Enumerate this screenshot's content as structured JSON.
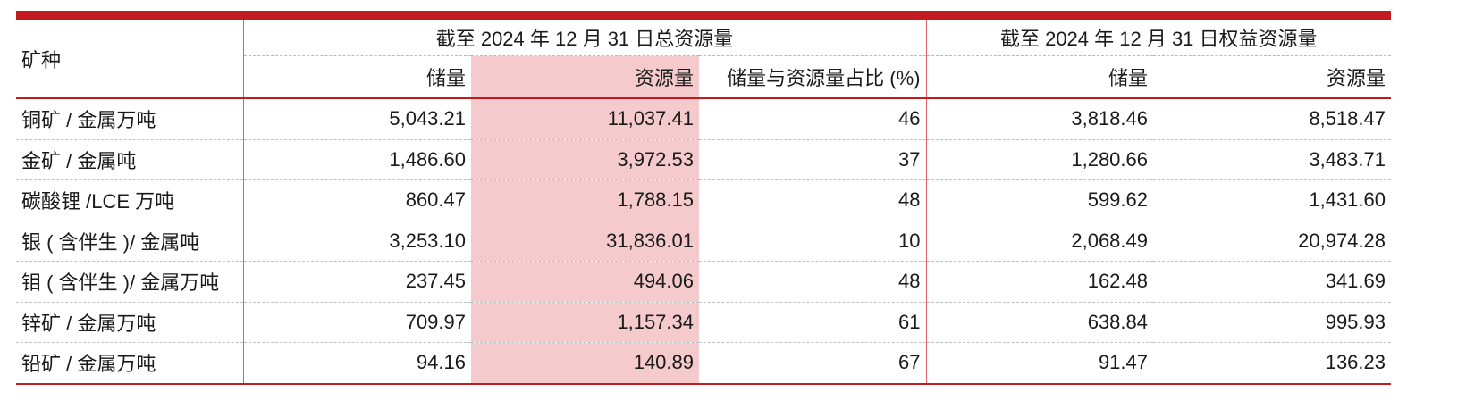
{
  "table": {
    "mineral_header": "矿种",
    "group_total": "截至 2024 年 12 月 31 日总资源量",
    "group_equity": "截至 2024 年 12 月 31 日权益资源量",
    "columns": [
      "储量",
      "资源量",
      "储量与资源量占比 (%)",
      "储量",
      "资源量"
    ],
    "highlight_color": "#f4cacd",
    "accent_color": "#c41a20",
    "rows": [
      {
        "name": "铜矿 / 金属万吨",
        "values": [
          "5,043.21",
          "11,037.41",
          "46",
          "3,818.46",
          "8,518.47"
        ]
      },
      {
        "name": "金矿 / 金属吨",
        "values": [
          "1,486.60",
          "3,972.53",
          "37",
          "1,280.66",
          "3,483.71"
        ]
      },
      {
        "name": "碳酸锂 /LCE 万吨",
        "values": [
          "860.47",
          "1,788.15",
          "48",
          "599.62",
          "1,431.60"
        ]
      },
      {
        "name": "银 ( 含伴生 )/ 金属吨",
        "values": [
          "3,253.10",
          "31,836.01",
          "10",
          "2,068.49",
          "20,974.28"
        ]
      },
      {
        "name": "钼 ( 含伴生 )/ 金属万吨",
        "values": [
          "237.45",
          "494.06",
          "48",
          "162.48",
          "341.69"
        ]
      },
      {
        "name": "锌矿 / 金属万吨",
        "values": [
          "709.97",
          "1,157.34",
          "61",
          "638.84",
          "995.93"
        ]
      },
      {
        "name": "铅矿 / 金属万吨",
        "values": [
          "94.16",
          "140.89",
          "67",
          "91.47",
          "136.23"
        ]
      }
    ]
  }
}
